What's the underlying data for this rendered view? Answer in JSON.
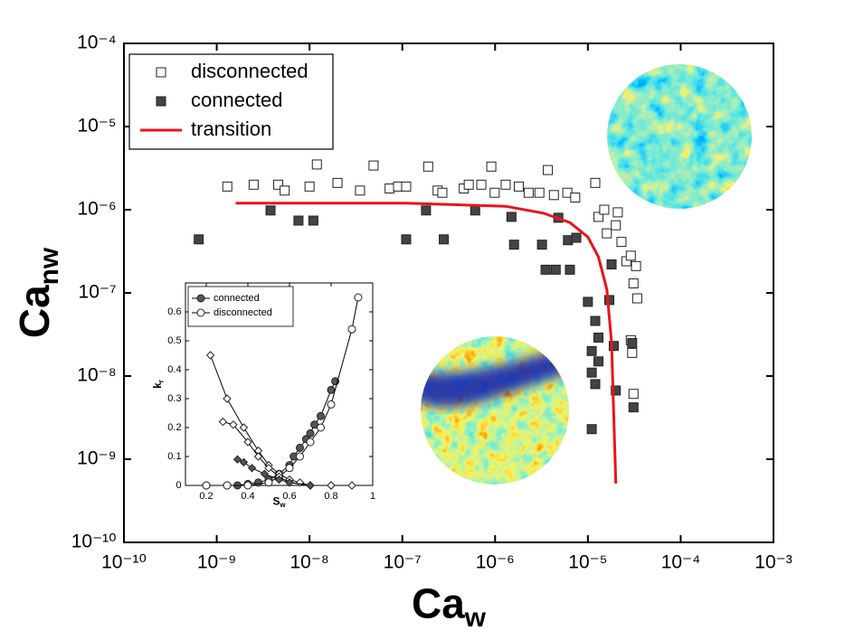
{
  "chart_data": [
    {
      "type": "scatter",
      "log": true,
      "x_label": "Ca",
      "x_label_sub": "w",
      "y_label": "Ca",
      "y_label_sub": "nw",
      "xlim": [
        1e-10,
        0.001
      ],
      "ylim": [
        1e-10,
        0.0001
      ],
      "xticks": [
        {
          "value": 1e-10,
          "label": "10⁻¹⁰"
        },
        {
          "value": 1e-09,
          "label": "10⁻⁹"
        },
        {
          "value": 1e-08,
          "label": "10⁻⁸"
        },
        {
          "value": 1e-07,
          "label": "10⁻⁷"
        },
        {
          "value": 1e-06,
          "label": "10⁻⁶"
        },
        {
          "value": 1e-05,
          "label": "10⁻⁵"
        },
        {
          "value": 0.0001,
          "label": "10⁻⁴"
        },
        {
          "value": 0.001,
          "label": "10⁻³"
        }
      ],
      "yticks": [
        {
          "value": 1e-10,
          "label": "10⁻¹⁰"
        },
        {
          "value": 1e-09,
          "label": "10⁻⁹"
        },
        {
          "value": 1e-08,
          "label": "10⁻⁸"
        },
        {
          "value": 1e-07,
          "label": "10⁻⁷"
        },
        {
          "value": 1e-06,
          "label": "10⁻⁶"
        },
        {
          "value": 1e-05,
          "label": "10⁻⁵"
        },
        {
          "value": 0.0001,
          "label": "10⁻⁴"
        }
      ],
      "legend": "upper left",
      "series": [
        {
          "name": "disconnected",
          "marker": "square-open",
          "color": "#333333",
          "x": [
            1.3e-09,
            2.5e-09,
            4.6e-09,
            5.4e-09,
            1e-08,
            1.2e-08,
            2e-08,
            3.5e-08,
            4.9e-08,
            7.3e-08,
            9e-08,
            1.1e-07,
            1.9e-07,
            2.4e-07,
            2.7e-07,
            4.6e-07,
            5.2e-07,
            7.1e-07,
            9.1e-07,
            9.9e-07,
            1.3e-06,
            1.8e-06,
            2.3e-06,
            3e-06,
            3.7e-06,
            4.3e-06,
            6e-06,
            7.3e-06,
            1.2e-05,
            1.3e-05,
            1.5e-05,
            1.6e-05,
            2e-05,
            2.1e-05,
            2.3e-05,
            2.6e-05,
            2.9e-05,
            3.4e-05,
            3.1e-05,
            2.9e-05,
            3e-05,
            3.1e-05,
            3.3e-05
          ],
          "y": [
            1.9e-06,
            2e-06,
            2e-06,
            1.7e-06,
            1.9e-06,
            3.5e-06,
            2.1e-06,
            1.7e-06,
            3.4e-06,
            1.8e-06,
            1.9e-06,
            1.9e-06,
            3.3e-06,
            1.7e-06,
            1.6e-06,
            1.8e-06,
            2e-06,
            2e-06,
            3.3e-06,
            1.6e-06,
            2e-06,
            1.9e-06,
            1.6e-06,
            1.6e-06,
            3e-06,
            1.5e-06,
            1.6e-06,
            1.4e-06,
            2.1e-06,
            8.2e-07,
            1e-06,
            5.2e-07,
            6.5e-07,
            9.3e-07,
            4.1e-07,
            2.4e-07,
            2.8e-07,
            8.6e-08,
            1.3e-07,
            2.7e-08,
            1.9e-08,
            6.1e-09,
            2.1e-07
          ]
        },
        {
          "name": "connected",
          "marker": "square-filled",
          "color": "#444444",
          "x": [
            6.4e-10,
            3.8e-09,
            7.6e-09,
            1.1e-08,
            1.8e-07,
            1.1e-07,
            2.8e-07,
            6.1e-07,
            1.5e-06,
            1.6e-06,
            3.2e-06,
            4.8e-06,
            6.1e-06,
            7.5e-06,
            3.5e-06,
            4.5e-06,
            6.4e-06,
            1e-05,
            1.2e-05,
            1.3e-05,
            1.1e-05,
            1.1e-05,
            1.2e-05,
            1.1e-05,
            1.7e-05,
            1.8e-05,
            1.9e-05,
            2e-05,
            3e-05,
            3.1e-05,
            1.3e-05
          ],
          "y": [
            4.4e-07,
            9.8e-07,
            7.4e-07,
            7.4e-07,
            9.8e-07,
            4.4e-07,
            4.4e-07,
            9.8e-07,
            8.2e-07,
            3.8e-07,
            3.8e-07,
            8e-07,
            4.3e-07,
            4.6e-07,
            1.9e-07,
            1.9e-07,
            1.9e-07,
            7.8e-08,
            4.6e-08,
            2.9e-08,
            2e-08,
            1.1e-08,
            8e-09,
            2.3e-09,
            8.2e-08,
            2.2e-07,
            2.3e-08,
            6.7e-09,
            2.5e-08,
            4.2e-09,
            1.5e-08
          ]
        },
        {
          "name": "transition",
          "marker": "line",
          "color": "#e8141c",
          "x": [
            1.6e-09,
            1.1e-07,
            1.3e-06,
            3.3e-06,
            6.4e-06,
            1e-05,
            1.3e-05,
            1.6e-05,
            1.8e-05,
            1.9e-05,
            2e-05
          ],
          "y": [
            1.2e-06,
            1.2e-06,
            1.1e-06,
            9.1e-07,
            7e-07,
            4.7e-07,
            2.7e-07,
            1.1e-07,
            2.5e-08,
            3.3e-09,
            5.1e-10
          ]
        }
      ]
    },
    {
      "type": "line",
      "x_label": "S",
      "x_label_sub": "w",
      "y_label": "k",
      "y_label_sub": "r",
      "xlim": [
        0.1,
        1
      ],
      "ylim": [
        0,
        0.7
      ],
      "xticks": [
        0.2,
        0.4,
        0.6,
        0.8,
        1
      ],
      "yticks": [
        0,
        0.1,
        0.2,
        0.3,
        0.4,
        0.5,
        0.6
      ],
      "legend": "upper left",
      "series": [
        {
          "name": "connected",
          "marker": "circle-filled",
          "color": "#555555",
          "x": [
            0.2,
            0.3,
            0.35,
            0.4,
            0.45,
            0.5,
            0.55,
            0.6,
            0.62,
            0.65,
            0.68,
            0.7,
            0.72,
            0.75,
            0.8,
            0.82
          ],
          "y": [
            0,
            0,
            0,
            0.005,
            0.01,
            0.02,
            0.04,
            0.07,
            0.1,
            0.13,
            0.16,
            0.18,
            0.21,
            0.24,
            0.33,
            0.36
          ]
        },
        {
          "name": "disconnected",
          "marker": "circle-open",
          "color": "#ffffff",
          "x": [
            0.2,
            0.3,
            0.4,
            0.5,
            0.55,
            0.6,
            0.65,
            0.7,
            0.75,
            0.8,
            0.9,
            0.93
          ],
          "y": [
            0,
            0,
            0,
            0.01,
            0.03,
            0.06,
            0.1,
            0.15,
            0.2,
            0.28,
            0.54,
            0.65
          ]
        },
        {
          "marker": "diamond-open",
          "color": "#ffffff",
          "x": [
            0.22,
            0.3,
            0.38,
            0.45,
            0.5,
            0.55,
            0.6,
            0.65,
            0.7,
            0.8,
            0.9
          ],
          "y": [
            0.45,
            0.3,
            0.2,
            0.12,
            0.07,
            0.04,
            0.02,
            0.01,
            0,
            0,
            0
          ]
        },
        {
          "marker": "diamond-open",
          "color": "#ffffff",
          "x": [
            0.28,
            0.33,
            0.4,
            0.45,
            0.5,
            0.55,
            0.6,
            0.7,
            0.8
          ],
          "y": [
            0.22,
            0.21,
            0.15,
            0.1,
            0.06,
            0.03,
            0.01,
            0,
            0
          ]
        },
        {
          "marker": "diamond-filled",
          "color": "#555555",
          "x": [
            0.35,
            0.38,
            0.42,
            0.48,
            0.55,
            0.6,
            0.7
          ],
          "y": [
            0.09,
            0.08,
            0.06,
            0.04,
            0.02,
            0.01,
            0
          ]
        }
      ]
    }
  ]
}
